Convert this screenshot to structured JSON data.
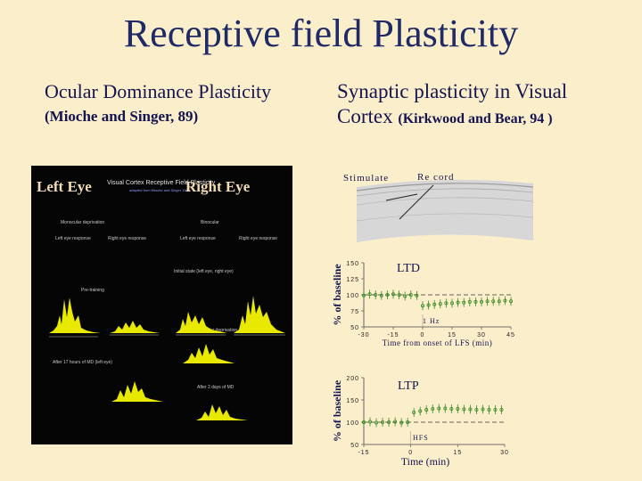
{
  "slide": {
    "title": "Receptive field Plasticity",
    "od_heading": "Ocular Dominance Plasticity",
    "od_citation": "(Mioche and Singer, 89)",
    "synaptic_heading_line1": "Synaptic plasticity in Visual",
    "synaptic_heading_line2": "Cortex",
    "synaptic_citation": "(Kirkwood and Bear, 94 )"
  },
  "od_panel": {
    "left_eye": "Left Eye",
    "right_eye": "Right Eye",
    "header": "Visual Cortex Receptive Field Plasticity",
    "subheader": "adapted from Mioche and Singer 1989",
    "col1": "Monocular deprivation",
    "col2": "Binocular",
    "row_labels": [
      "Left eye response",
      "Right eye response",
      "Left eye response",
      "Right eye response"
    ],
    "note1": "Initial state (left eye, right eye)",
    "note2": "Pre-training",
    "note3": "After monocular deprivation",
    "note4": "After 17 hours of MD (left eye)",
    "note5": "After 2 days of MD"
  },
  "cortex_diagram": {
    "stimulate": "Stimulate",
    "record": "Re cord"
  },
  "chart_data": [
    {
      "type": "scatter",
      "title": "LTD",
      "ylabel": "% of baseline",
      "xlabel": "Time from onset of LFS (min)",
      "xlim": [
        -30,
        45
      ],
      "ylim": [
        50,
        150
      ],
      "yticks": [
        "150",
        "125",
        "100",
        "75",
        "50"
      ],
      "xticks": [
        "-30",
        "-15",
        "0",
        "15",
        "30",
        "45"
      ],
      "baseline": 100,
      "annotation": "1 Hz",
      "stim_x": 0,
      "series": [
        {
          "x": [
            -30,
            -27,
            -24,
            -21,
            -18,
            -15,
            -12,
            -9,
            -6,
            -3,
            0,
            3,
            6,
            9,
            12,
            15,
            18,
            21,
            24,
            27,
            30,
            33,
            36,
            39,
            42,
            45
          ],
          "y": [
            99,
            101,
            100,
            99,
            100,
            101,
            100,
            98,
            100,
            99,
            83,
            84,
            85,
            86,
            87,
            87,
            88,
            88,
            89,
            89,
            89,
            90,
            90,
            90,
            91,
            90
          ]
        }
      ]
    },
    {
      "type": "scatter",
      "title": "LTP",
      "ylabel": "% of baseline",
      "xlabel": "Time (min)",
      "xlim": [
        -15,
        30
      ],
      "ylim": [
        50,
        200
      ],
      "yticks": [
        "200",
        "150",
        "100",
        "50"
      ],
      "xticks": [
        "-15",
        "0",
        "15",
        "30"
      ],
      "baseline": 100,
      "annotation": "HFS",
      "stim_x": 0,
      "series": [
        {
          "x": [
            -15,
            -13,
            -11,
            -9,
            -7,
            -5,
            -3,
            -1,
            1,
            3,
            5,
            7,
            9,
            11,
            13,
            15,
            17,
            19,
            21,
            23,
            25,
            27,
            29
          ],
          "y": [
            100,
            101,
            99,
            100,
            100,
            101,
            99,
            100,
            122,
            125,
            128,
            130,
            131,
            131,
            130,
            130,
            129,
            129,
            128,
            129,
            128,
            128,
            128
          ]
        }
      ]
    }
  ]
}
